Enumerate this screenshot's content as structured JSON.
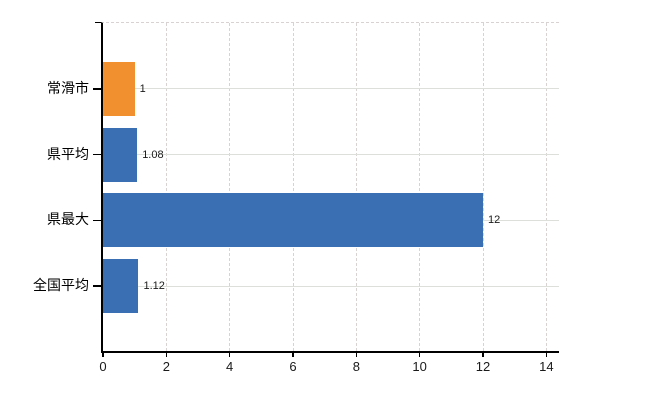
{
  "chart_data": {
    "type": "bar",
    "orientation": "horizontal",
    "title": "",
    "xlabel": "",
    "ylabel": "",
    "categories": [
      "常滑市",
      "県平均",
      "県最大",
      "全国平均"
    ],
    "values": [
      1,
      1.08,
      12,
      1.12
    ],
    "value_labels": [
      "1",
      "1.08",
      "12",
      "1.12"
    ],
    "bar_colors": [
      "#f0902e",
      "#3b6fb4",
      "#3b6fb4",
      "#3b6fb4"
    ],
    "x_ticks": [
      0,
      2,
      4,
      6,
      8,
      10,
      12,
      14
    ],
    "x_tick_labels": [
      "0",
      "2",
      "4",
      "6",
      "8",
      "10",
      "12",
      "14"
    ],
    "xlim": [
      0,
      14.4
    ],
    "grid": {
      "vertical": "dashed",
      "horizontal": "solid"
    },
    "legend": "none"
  },
  "colors": {
    "bar_highlight": "#f0902e",
    "bar_default": "#3b6fb4",
    "axis": "#000000",
    "grid_vertical": "#d8d2d2",
    "grid_horizontal": "#dcdfda",
    "text": "#1a1a1a",
    "background": "#ffffff"
  }
}
